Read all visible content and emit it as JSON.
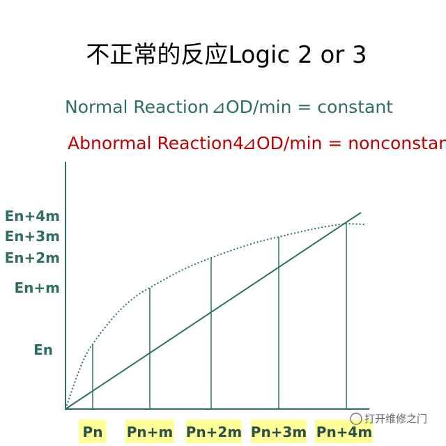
{
  "title": "不正常的反应Logic 2 or 3",
  "normal_reaction": {
    "label": "Normal Reaction",
    "formula": "⊿OD/min = constant"
  },
  "abnormal_reaction": {
    "label": "Abnormal Reaction4",
    "formula": "⊿OD/min = nonconstant"
  },
  "y_labels": [
    "En+4m",
    "En+3m",
    "En+2m",
    "En+m",
    "En"
  ],
  "x_labels": [
    "Pn",
    "Pn+m",
    "Pn+2m",
    "Pn+3m",
    "Pn+4m"
  ],
  "watermark": "打开维修之门"
}
